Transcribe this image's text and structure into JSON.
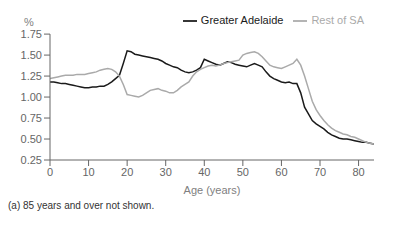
{
  "chart_data": {
    "type": "line",
    "xlabel": "Age (years)",
    "ylabel": "%",
    "footnote": "(a) 85 years and over not shown.",
    "x": [
      0,
      1,
      2,
      3,
      4,
      5,
      6,
      7,
      8,
      9,
      10,
      11,
      12,
      13,
      14,
      15,
      16,
      17,
      18,
      19,
      20,
      21,
      22,
      23,
      24,
      25,
      26,
      27,
      28,
      29,
      30,
      31,
      32,
      33,
      34,
      35,
      36,
      37,
      38,
      39,
      40,
      41,
      42,
      43,
      44,
      45,
      46,
      47,
      48,
      49,
      50,
      51,
      52,
      53,
      54,
      55,
      56,
      57,
      58,
      59,
      60,
      61,
      62,
      63,
      64,
      65,
      66,
      67,
      68,
      69,
      70,
      71,
      72,
      73,
      74,
      75,
      76,
      77,
      78,
      79,
      80,
      81,
      82,
      83,
      84
    ],
    "series": [
      {
        "name": "Greater Adelaide",
        "color": "#1a1a1a",
        "values": [
          1.18,
          1.18,
          1.17,
          1.16,
          1.16,
          1.15,
          1.14,
          1.13,
          1.12,
          1.11,
          1.11,
          1.12,
          1.12,
          1.13,
          1.13,
          1.15,
          1.18,
          1.22,
          1.26,
          1.4,
          1.55,
          1.54,
          1.51,
          1.5,
          1.49,
          1.48,
          1.47,
          1.46,
          1.45,
          1.43,
          1.4,
          1.38,
          1.36,
          1.35,
          1.32,
          1.3,
          1.29,
          1.3,
          1.32,
          1.35,
          1.45,
          1.43,
          1.41,
          1.39,
          1.38,
          1.4,
          1.42,
          1.41,
          1.39,
          1.38,
          1.37,
          1.36,
          1.38,
          1.4,
          1.38,
          1.36,
          1.3,
          1.25,
          1.22,
          1.2,
          1.18,
          1.17,
          1.18,
          1.16,
          1.16,
          1.05,
          0.88,
          0.8,
          0.72,
          0.68,
          0.65,
          0.62,
          0.58,
          0.55,
          0.53,
          0.51,
          0.5,
          0.5,
          0.49,
          0.48,
          0.47,
          0.46,
          0.46,
          0.45,
          0.44
        ]
      },
      {
        "name": "Rest of SA",
        "color": "#aaaaaa",
        "values": [
          1.22,
          1.23,
          1.24,
          1.25,
          1.26,
          1.26,
          1.26,
          1.27,
          1.27,
          1.27,
          1.28,
          1.29,
          1.3,
          1.32,
          1.33,
          1.34,
          1.33,
          1.3,
          1.25,
          1.15,
          1.03,
          1.02,
          1.01,
          1.0,
          1.02,
          1.05,
          1.08,
          1.09,
          1.1,
          1.08,
          1.07,
          1.05,
          1.05,
          1.08,
          1.12,
          1.15,
          1.18,
          1.25,
          1.3,
          1.33,
          1.35,
          1.37,
          1.38,
          1.37,
          1.38,
          1.4,
          1.41,
          1.42,
          1.43,
          1.44,
          1.5,
          1.52,
          1.53,
          1.54,
          1.52,
          1.48,
          1.43,
          1.38,
          1.36,
          1.35,
          1.34,
          1.36,
          1.38,
          1.4,
          1.45,
          1.38,
          1.25,
          1.1,
          0.95,
          0.85,
          0.78,
          0.72,
          0.67,
          0.63,
          0.6,
          0.58,
          0.56,
          0.55,
          0.53,
          0.52,
          0.5,
          0.48,
          0.46,
          0.45,
          0.44
        ]
      }
    ],
    "xlim": [
      0,
      84
    ],
    "xticks": [
      0,
      10,
      20,
      30,
      40,
      50,
      60,
      70,
      80
    ],
    "ylim": [
      0.25,
      1.75
    ],
    "yticks": [
      0.25,
      {
        "value": 0.5,
        "label": "0.50"
      },
      0.75,
      {
        "value": 1.0,
        "label": "1.00"
      },
      1.25,
      {
        "value": 1.5,
        "label": "1.50"
      },
      1.75
    ],
    "grid": false,
    "legend": "upper right"
  }
}
